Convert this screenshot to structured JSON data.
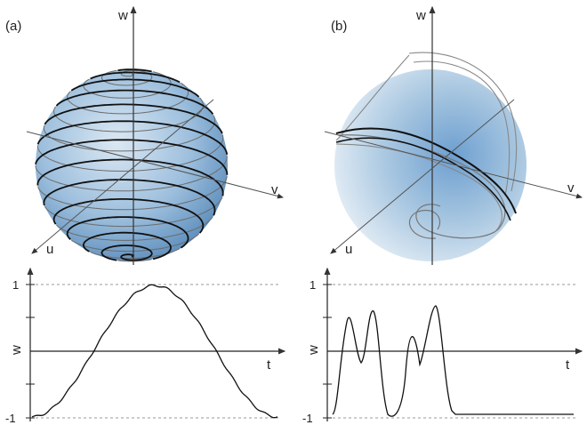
{
  "panels": [
    {
      "id": "a",
      "label": "(a)",
      "sphere_axes": {
        "u": "u",
        "v": "v",
        "w": "w"
      },
      "graph": {
        "ylabel": "w",
        "xlabel": "t",
        "y_top": "1",
        "y_bottom": "-1"
      }
    },
    {
      "id": "b",
      "label": "(b)",
      "sphere_axes": {
        "u": "u",
        "v": "v",
        "w": "w"
      },
      "graph": {
        "ylabel": "w",
        "xlabel": "t",
        "y_top": "1",
        "y_bottom": "-1"
      }
    }
  ],
  "colors": {
    "sphere_light": "#cfe0ee",
    "sphere_dark": "#5f95c6",
    "curve": "#111111",
    "axis": "#333333",
    "dashed": "#999999"
  }
}
